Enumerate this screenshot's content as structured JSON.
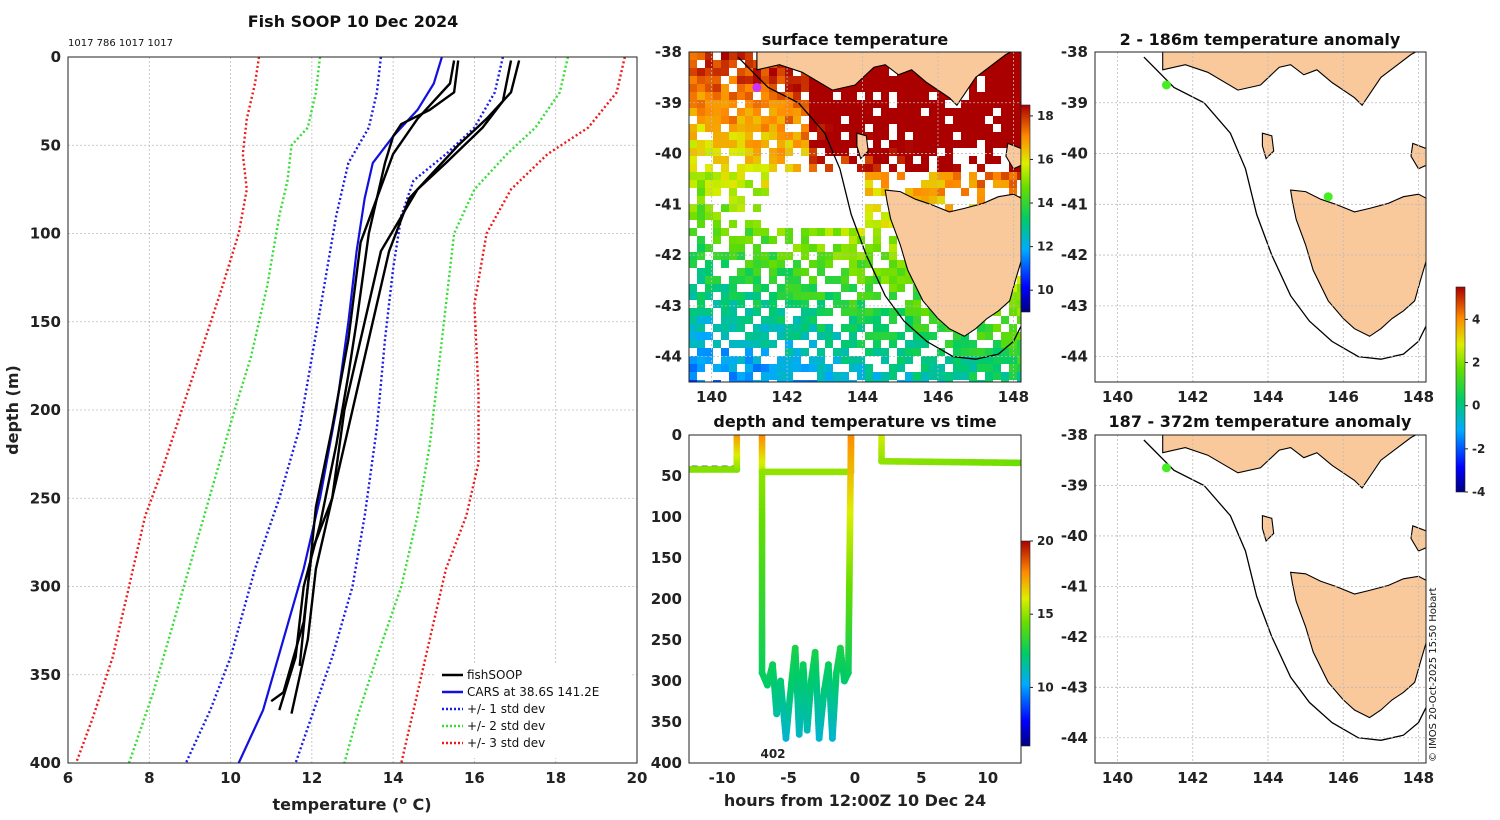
{
  "colors": {
    "obs": "#000000",
    "cars": "#1010e0",
    "std1": "#1a1ae6",
    "std2": "#33dd33",
    "std3": "#ee1a1a",
    "land": "#f9c99b",
    "coast": "#000000"
  },
  "chart_data": [
    {
      "type": "line",
      "title": "Fish SOOP 10 Dec 2024",
      "header_note": "1017 786 1017 1017",
      "xlabel": "temperature (",
      "xlabel_sup": "o",
      "xlabel_end": " C)",
      "ylabel": "depth (m)",
      "xlim": [
        6,
        20
      ],
      "ylim": [
        400,
        0
      ],
      "xticks": [
        "6",
        "8",
        "10",
        "12",
        "14",
        "16",
        "18",
        "20"
      ],
      "yticks": [
        "0",
        "50",
        "100",
        "150",
        "200",
        "250",
        "300",
        "350",
        "400"
      ],
      "legend": [
        "fishSOOP",
        "CARS at 38.6S 141.2E",
        "+/- 1 std dev",
        "+/- 2 std dev",
        "+/- 3 std dev"
      ],
      "series": [
        {
          "name": "CARS",
          "style": "cars",
          "points": [
            [
              15.2,
              0
            ],
            [
              15,
              15
            ],
            [
              14.6,
              30
            ],
            [
              14,
              45
            ],
            [
              13.5,
              60
            ],
            [
              13.3,
              80
            ],
            [
              13.1,
              110
            ],
            [
              12.9,
              150
            ],
            [
              12.6,
              200
            ],
            [
              12.2,
              250
            ],
            [
              11.8,
              290
            ],
            [
              11.3,
              330
            ],
            [
              10.8,
              370
            ],
            [
              10.2,
              400
            ]
          ]
        },
        {
          "name": "std1_left",
          "style": "std1",
          "points": [
            [
              13.7,
              0
            ],
            [
              13.6,
              20
            ],
            [
              13.4,
              40
            ],
            [
              12.9,
              60
            ],
            [
              12.6,
              90
            ],
            [
              12.3,
              130
            ],
            [
              12.0,
              170
            ],
            [
              11.7,
              210
            ],
            [
              11.2,
              250
            ],
            [
              10.6,
              290
            ],
            [
              10.0,
              340
            ],
            [
              9.5,
              370
            ],
            [
              8.9,
              400
            ]
          ]
        },
        {
          "name": "std1_right",
          "style": "std1",
          "points": [
            [
              16.7,
              0
            ],
            [
              16.5,
              20
            ],
            [
              16.0,
              40
            ],
            [
              15.3,
              55
            ],
            [
              14.5,
              70
            ],
            [
              14.2,
              90
            ],
            [
              14.0,
              120
            ],
            [
              13.8,
              160
            ],
            [
              13.6,
              210
            ],
            [
              13.3,
              260
            ],
            [
              13.0,
              300
            ],
            [
              12.5,
              340
            ],
            [
              11.9,
              380
            ],
            [
              11.6,
              400
            ]
          ]
        },
        {
          "name": "std2_left",
          "style": "std2",
          "points": [
            [
              12.2,
              0
            ],
            [
              12.1,
              20
            ],
            [
              11.9,
              40
            ],
            [
              11.5,
              50
            ],
            [
              11.4,
              70
            ],
            [
              11.2,
              90
            ],
            [
              10.9,
              130
            ],
            [
              10.5,
              170
            ],
            [
              10.1,
              200
            ],
            [
              9.6,
              240
            ],
            [
              9.1,
              280
            ],
            [
              8.6,
              320
            ],
            [
              8.1,
              360
            ],
            [
              7.5,
              400
            ]
          ]
        },
        {
          "name": "std2_right",
          "style": "std2",
          "points": [
            [
              18.3,
              0
            ],
            [
              18.1,
              20
            ],
            [
              17.5,
              40
            ],
            [
              16.8,
              55
            ],
            [
              16.0,
              75
            ],
            [
              15.5,
              100
            ],
            [
              15.3,
              140
            ],
            [
              15.1,
              180
            ],
            [
              14.9,
              220
            ],
            [
              14.6,
              260
            ],
            [
              14.2,
              300
            ],
            [
              13.6,
              340
            ],
            [
              13.1,
              375
            ],
            [
              12.8,
              400
            ]
          ]
        },
        {
          "name": "std3_left",
          "style": "std3",
          "points": [
            [
              10.7,
              0
            ],
            [
              10.6,
              15
            ],
            [
              10.4,
              35
            ],
            [
              10.3,
              55
            ],
            [
              10.4,
              75
            ],
            [
              10.2,
              100
            ],
            [
              9.8,
              130
            ],
            [
              9.3,
              165
            ],
            [
              8.8,
              200
            ],
            [
              8.3,
              235
            ],
            [
              7.9,
              260
            ],
            [
              7.5,
              300
            ],
            [
              7.1,
              340
            ],
            [
              6.6,
              375
            ],
            [
              6.2,
              400
            ]
          ]
        },
        {
          "name": "std3_right",
          "style": "std3",
          "points": [
            [
              19.7,
              0
            ],
            [
              19.5,
              20
            ],
            [
              18.8,
              40
            ],
            [
              17.8,
              55
            ],
            [
              16.9,
              75
            ],
            [
              16.3,
              100
            ],
            [
              16.0,
              140
            ],
            [
              16.1,
              190
            ],
            [
              16.1,
              230
            ],
            [
              15.8,
              260
            ],
            [
              15.3,
              290
            ],
            [
              14.9,
              330
            ],
            [
              14.5,
              370
            ],
            [
              14.2,
              400
            ]
          ]
        },
        {
          "name": "obs1",
          "style": "obs",
          "points": [
            [
              15.6,
              2
            ],
            [
              15.5,
              20
            ],
            [
              14.9,
              30
            ],
            [
              14.2,
              38
            ],
            [
              14.0,
              45
            ],
            [
              13.8,
              60
            ],
            [
              13.4,
              100
            ],
            [
              13.1,
              150
            ],
            [
              12.9,
              180
            ],
            [
              12.6,
              220
            ],
            [
              12.2,
              265
            ],
            [
              11.8,
              300
            ],
            [
              11.6,
              340
            ],
            [
              11.2,
              370
            ]
          ]
        },
        {
          "name": "obs2",
          "style": "obs",
          "points": [
            [
              17.1,
              2
            ],
            [
              16.9,
              20
            ],
            [
              16.3,
              35
            ],
            [
              15.6,
              50
            ],
            [
              15.0,
              65
            ],
            [
              14.4,
              80
            ],
            [
              13.9,
              110
            ],
            [
              13.5,
              150
            ],
            [
              13.0,
              200
            ],
            [
              12.4,
              260
            ],
            [
              12.1,
              290
            ],
            [
              11.9,
              330
            ],
            [
              11.5,
              372
            ]
          ]
        },
        {
          "name": "obs3",
          "style": "obs",
          "points": [
            [
              16.9,
              2
            ],
            [
              16.7,
              25
            ],
            [
              16.2,
              40
            ],
            [
              15.3,
              60
            ],
            [
              14.6,
              75
            ],
            [
              13.7,
              110
            ],
            [
              13.3,
              150
            ],
            [
              12.8,
              200
            ],
            [
              12.5,
              250
            ],
            [
              12.0,
              280
            ],
            [
              11.8,
              320
            ],
            [
              11.3,
              360
            ],
            [
              11.0,
              365
            ]
          ]
        },
        {
          "name": "obs4",
          "style": "obs",
          "points": [
            [
              15.5,
              2
            ],
            [
              15.4,
              15
            ],
            [
              15.0,
              25
            ],
            [
              14.6,
              35
            ],
            [
              14.3,
              45
            ],
            [
              14.0,
              55
            ],
            [
              13.2,
              105
            ],
            [
              12.9,
              160
            ],
            [
              12.5,
              210
            ],
            [
              12.1,
              255
            ],
            [
              11.9,
              300
            ],
            [
              11.7,
              345
            ]
          ]
        }
      ]
    },
    {
      "type": "heatmap",
      "title": "surface temperature",
      "xlim": [
        139.4,
        148.2
      ],
      "ylim": [
        -44.5,
        -38
      ],
      "xticks": [
        "140",
        "142",
        "144",
        "146",
        "148"
      ],
      "yticks": [
        "-38",
        "-39",
        "-40",
        "-41",
        "-42",
        "-43",
        "-44"
      ],
      "colorbar": {
        "range": [
          9,
          18.5
        ],
        "ticks": [
          "10",
          "12",
          "14",
          "16",
          "18"
        ]
      },
      "markers": [
        {
          "lon": 141.2,
          "lat": -38.7
        }
      ]
    },
    {
      "type": "scatter",
      "title": "depth and temperature vs time",
      "xlabel": "hours from 12:00Z 10 Dec 24",
      "xlim": [
        -12.5,
        12.5
      ],
      "ylim": [
        400,
        0
      ],
      "xticks": [
        "-10",
        "-5",
        "0",
        "5",
        "10"
      ],
      "yticks": [
        "0",
        "50",
        "100",
        "150",
        "200",
        "250",
        "300",
        "350",
        "400"
      ],
      "annotation": "402",
      "colorbar": {
        "range": [
          6,
          20
        ],
        "ticks": [
          "10",
          "15",
          "20"
        ]
      },
      "segments": [
        {
          "t": [
            -12.5,
            -8.9
          ],
          "d": [
            42,
            42
          ],
          "temp": [
            14.8,
            14.8
          ]
        },
        {
          "t": [
            -8.9,
            -8.9
          ],
          "d": [
            42,
            0
          ],
          "temp": [
            14.8,
            17.5
          ]
        },
        {
          "t": [
            -7,
            -7
          ],
          "d": [
            0,
            45
          ],
          "temp": [
            18,
            15.5
          ]
        },
        {
          "t": [
            -7,
            -0.3
          ],
          "d": [
            45,
            45
          ],
          "temp": [
            15,
            15
          ]
        },
        {
          "t": [
            -0.3,
            -0.3
          ],
          "d": [
            45,
            0
          ],
          "temp": [
            15,
            18
          ]
        },
        {
          "t": [
            2,
            2
          ],
          "d": [
            0,
            32
          ],
          "temp": [
            16,
            15
          ]
        },
        {
          "t": [
            2,
            12.5
          ],
          "d": [
            32,
            34
          ],
          "temp": [
            15,
            14.5
          ]
        },
        {
          "t": [
            -7,
            -7
          ],
          "d": [
            45,
            290
          ],
          "temp": [
            15,
            12.5
          ]
        },
        {
          "t": [
            -7,
            -6.6,
            -6.2,
            -5.9,
            -5.6,
            -5.2,
            -4.9,
            -4.5,
            -4.2,
            -3.9,
            -3.6,
            -3.3,
            -3.0,
            -2.7,
            -2.3,
            -2.0,
            -1.7,
            -1.4,
            -1.1,
            -0.8,
            -0.5,
            -0.3
          ],
          "d": [
            290,
            305,
            280,
            340,
            300,
            370,
            320,
            260,
            365,
            280,
            360,
            300,
            265,
            370,
            310,
            280,
            370,
            290,
            260,
            300,
            290,
            0
          ],
          "temp": [
            12.5,
            12.3,
            12.6,
            11.5,
            12.2,
            10.8,
            12,
            12.9,
            11,
            12.5,
            11.2,
            12.2,
            12.8,
            10.8,
            12.1,
            12.5,
            10.8,
            12.4,
            12.9,
            12.2,
            12.4,
            17.8
          ]
        }
      ]
    },
    {
      "type": "heatmap",
      "title": "2 - 186m temperature anomaly",
      "xlim": [
        139.4,
        148.2
      ],
      "ylim": [
        -44.5,
        -38
      ],
      "xticks": [
        "140",
        "142",
        "144",
        "146",
        "148"
      ],
      "yticks": [
        "-38",
        "-39",
        "-40",
        "-41",
        "-42",
        "-43",
        "-44"
      ],
      "markers": [
        {
          "lon": 141.3,
          "lat": -38.65
        },
        {
          "lon": 145.6,
          "lat": -40.85
        }
      ]
    },
    {
      "type": "heatmap",
      "title": "187 - 372m temperature anomaly",
      "xlim": [
        139.4,
        148.2
      ],
      "ylim": [
        -44.5,
        -38
      ],
      "xticks": [
        "140",
        "142",
        "144",
        "146",
        "148"
      ],
      "yticks": [
        "-38",
        "-39",
        "-40",
        "-41",
        "-42",
        "-43",
        "-44"
      ],
      "colorbar": {
        "range": [
          -4,
          5.5
        ],
        "ticks": [
          "-4",
          "-2",
          "0",
          "2",
          "4"
        ]
      },
      "markers": [
        {
          "lon": 141.3,
          "lat": -38.65
        }
      ]
    }
  ],
  "footer": {
    "credit": "© IMOS 20-Oct-2025 15:50 Hobart"
  }
}
